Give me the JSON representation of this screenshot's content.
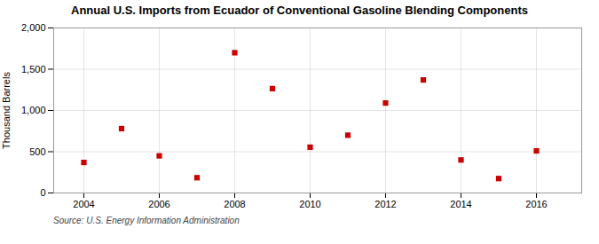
{
  "chart_data": {
    "type": "scatter",
    "title": "Annual U.S. Imports from Ecuador of Conventional Gasoline Blending Components",
    "ylabel": "Thousand Barrels",
    "source": "Source: U.S. Energy Information Administration",
    "x": [
      2004,
      2005,
      2006,
      2007,
      2008,
      2009,
      2010,
      2011,
      2012,
      2013,
      2014,
      2015,
      2016
    ],
    "values": [
      370,
      780,
      450,
      185,
      1700,
      1265,
      555,
      700,
      1090,
      1370,
      400,
      175,
      510
    ],
    "color": "#cc0000",
    "marker": "square",
    "xlim": [
      2003.2,
      2017.2
    ],
    "xticks": [
      2004,
      2006,
      2008,
      2010,
      2012,
      2014,
      2016
    ],
    "ylim": [
      0,
      2000
    ],
    "yticks": [
      0,
      500,
      {
        "value": 1000,
        "label": "1,000"
      },
      {
        "value": 1500,
        "label": "1,500"
      },
      {
        "value": 2000,
        "label": "2,000"
      }
    ],
    "grid": true
  }
}
